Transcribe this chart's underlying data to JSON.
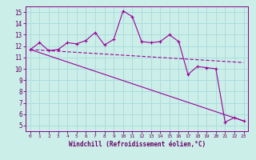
{
  "xlabel": "Windchill (Refroidissement éolien,°C)",
  "bg_color": "#cceee8",
  "grid_color": "#aadddd",
  "line_color": "#990099",
  "x_ticks": [
    0,
    1,
    2,
    3,
    4,
    5,
    6,
    7,
    8,
    9,
    10,
    11,
    12,
    13,
    14,
    15,
    16,
    17,
    18,
    19,
    20,
    21,
    22,
    23
  ],
  "y_ticks": [
    5,
    6,
    7,
    8,
    9,
    10,
    11,
    12,
    13,
    14,
    15
  ],
  "ylim": [
    4.5,
    15.5
  ],
  "xlim": [
    -0.5,
    23.5
  ],
  "line1_x": [
    0,
    1,
    2,
    3,
    4,
    5,
    6,
    7,
    8,
    9,
    10,
    11,
    12,
    13,
    14,
    15,
    16,
    17,
    18,
    19,
    20,
    21,
    22,
    23
  ],
  "line1_y": [
    11.7,
    12.3,
    11.6,
    11.7,
    12.3,
    12.2,
    12.5,
    13.2,
    12.1,
    12.6,
    15.1,
    14.6,
    12.4,
    12.3,
    12.4,
    13.0,
    12.4,
    9.5,
    10.2,
    10.1,
    10.0,
    5.3,
    5.7,
    5.4
  ],
  "line2_x": [
    0,
    1,
    2,
    3,
    4,
    5,
    6,
    7,
    8,
    9,
    10,
    11,
    12,
    13,
    14,
    15,
    16,
    17,
    18,
    19,
    20,
    21,
    22,
    23
  ],
  "line2_y": [
    11.7,
    11.65,
    11.6,
    11.55,
    11.5,
    11.45,
    11.4,
    11.35,
    11.3,
    11.25,
    11.2,
    11.15,
    11.1,
    11.05,
    11.0,
    10.95,
    10.9,
    10.85,
    10.8,
    10.75,
    10.7,
    10.65,
    10.6,
    10.55
  ],
  "line3_x": [
    0,
    23
  ],
  "line3_y": [
    11.7,
    5.4
  ]
}
